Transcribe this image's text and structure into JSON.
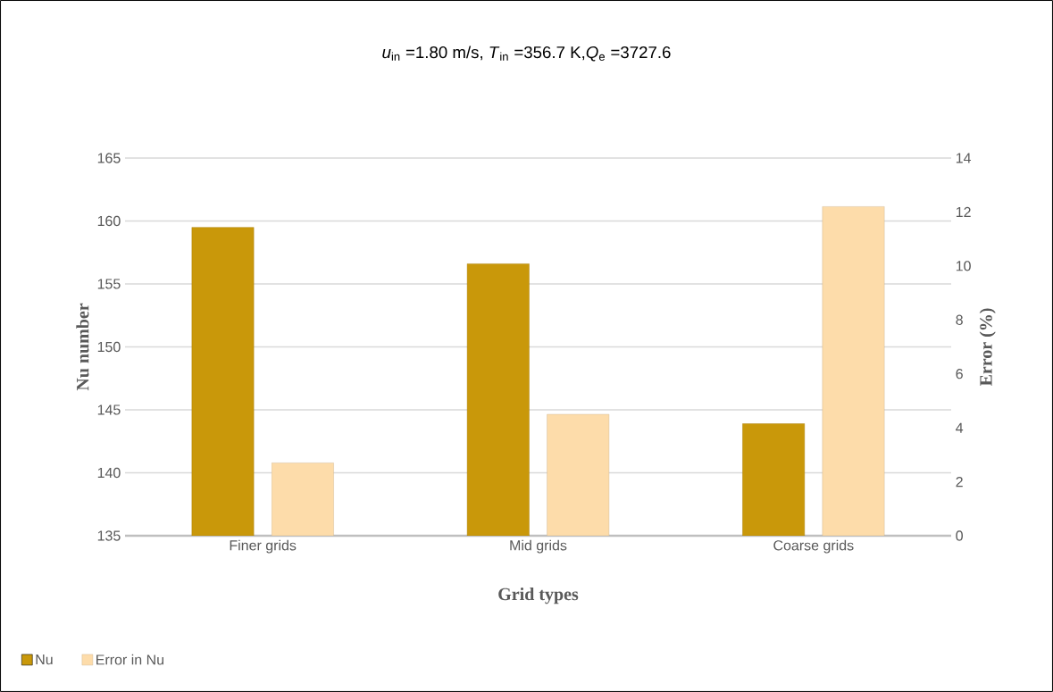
{
  "chart_data": {
    "type": "bar",
    "title": "*u*$_{in}$ =1.80 m/s, *T*$_{in}$ =356.7 K,*Q*$_{e}$ =3727.6",
    "xlabel": "Grid types",
    "ylabel": "Nu number",
    "y2label": "Error (%)",
    "categories": [
      "Finer grids",
      "Mid grids",
      "Coarse grids"
    ],
    "series": [
      {
        "name": "Nu",
        "color": "#c9980a",
        "values": [
          159.5,
          156.6,
          143.9
        ]
      },
      {
        "name": "Error in Nu",
        "color": "#fddcaa",
        "values": [
          2.7,
          4.5,
          12.2
        ],
        "axis": "y2"
      }
    ],
    "ylim": [
      135,
      165
    ],
    "yticks": [
      135,
      140,
      145,
      150,
      155,
      160,
      165
    ],
    "y2lim": [
      0,
      14
    ],
    "y2ticks": [
      0,
      2,
      4,
      6,
      8,
      10,
      12,
      14
    ],
    "grid": "y",
    "legend": "bottom left"
  }
}
